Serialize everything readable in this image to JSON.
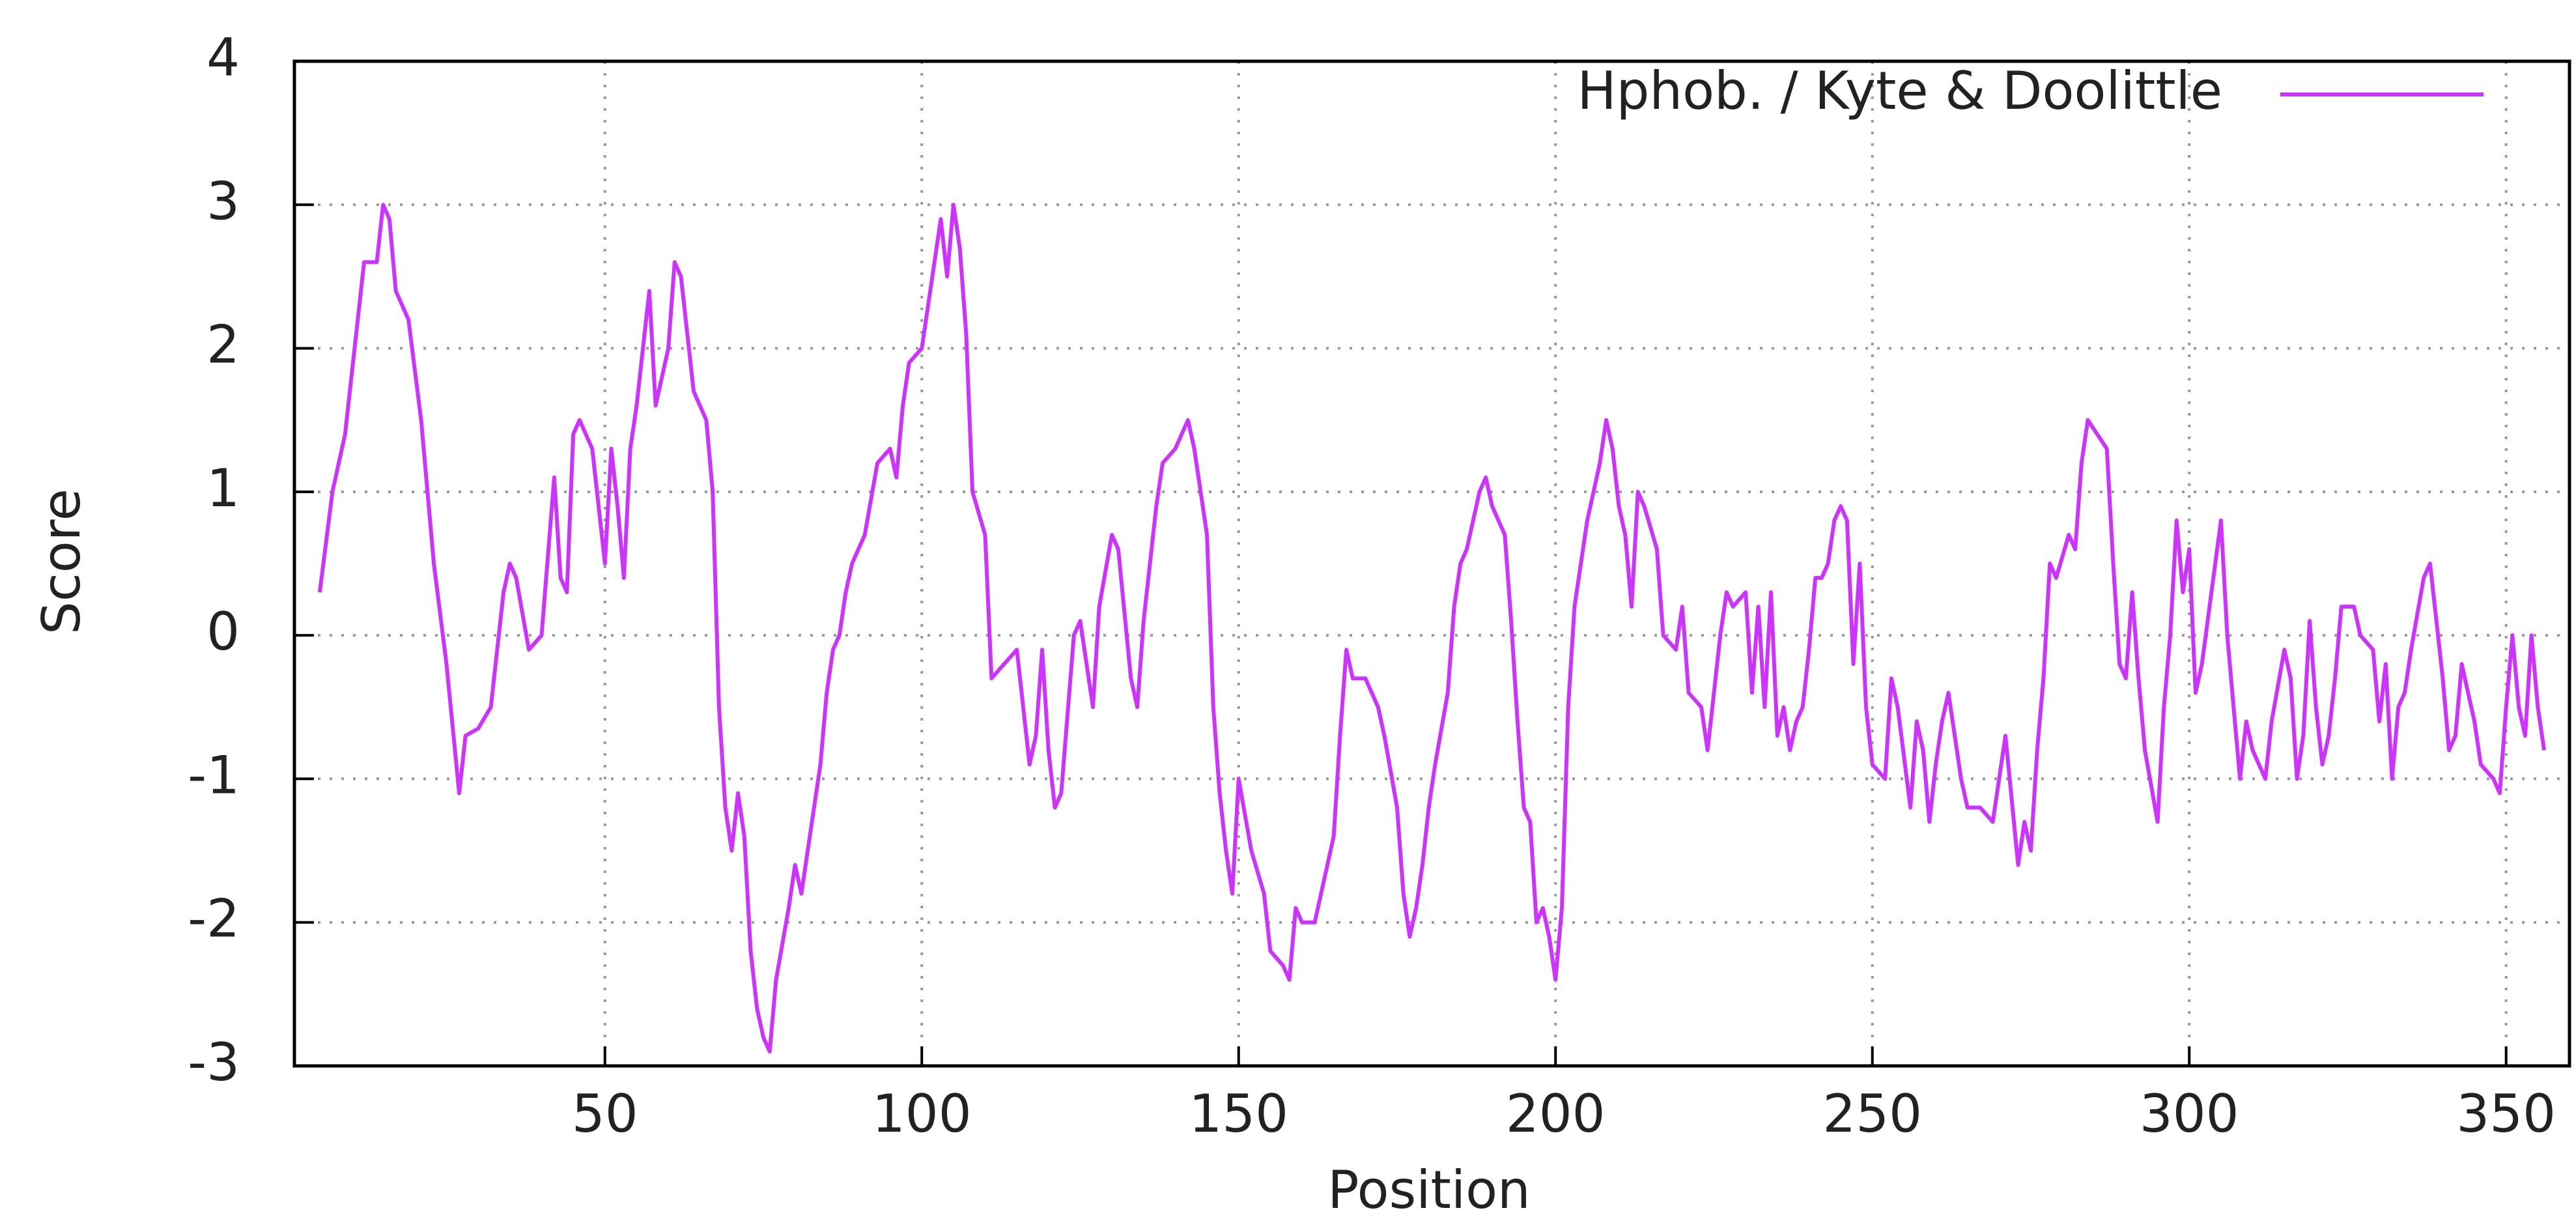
{
  "chart_data": {
    "type": "line",
    "xlabel": "Position",
    "ylabel": "Score",
    "x": [
      5,
      7,
      9,
      11,
      12,
      14,
      15,
      16,
      17,
      19,
      21,
      23,
      25,
      27,
      28,
      30,
      32,
      34,
      35,
      36,
      38,
      40,
      42,
      43,
      44,
      45,
      46,
      48,
      50,
      51,
      52,
      53,
      54,
      55,
      57,
      58,
      60,
      61,
      62,
      64,
      66,
      67,
      68,
      69,
      70,
      71,
      72,
      73,
      74,
      75,
      76,
      77,
      79,
      80,
      81,
      82,
      84,
      85,
      86,
      87,
      88,
      89,
      91,
      93,
      95,
      96,
      97,
      98,
      100,
      102,
      103,
      104,
      105,
      106,
      107,
      108,
      110,
      111,
      113,
      115,
      117,
      118,
      119,
      120,
      121,
      122,
      124,
      125,
      127,
      128,
      130,
      131,
      133,
      134,
      135,
      137,
      138,
      140,
      142,
      143,
      144,
      145,
      146,
      147,
      148,
      149,
      150,
      152,
      154,
      155,
      157,
      158,
      159,
      160,
      162,
      163,
      164,
      165,
      166,
      167,
      168,
      170,
      171,
      172,
      173,
      175,
      176,
      177,
      178,
      179,
      180,
      181,
      183,
      184,
      185,
      186,
      188,
      189,
      190,
      192,
      193,
      194,
      195,
      196,
      197,
      198,
      199,
      200,
      201,
      202,
      203,
      205,
      206,
      207,
      208,
      209,
      210,
      211,
      212,
      213,
      214,
      216,
      217,
      219,
      220,
      221,
      223,
      224,
      225,
      226,
      227,
      228,
      230,
      231,
      232,
      233,
      234,
      235,
      236,
      237,
      238,
      239,
      240,
      241,
      242,
      243,
      244,
      245,
      246,
      247,
      248,
      249,
      250,
      252,
      253,
      254,
      256,
      257,
      258,
      259,
      260,
      261,
      262,
      264,
      265,
      267,
      269,
      270,
      271,
      273,
      274,
      275,
      276,
      277,
      278,
      279,
      281,
      282,
      283,
      284,
      287,
      288,
      289,
      290,
      291,
      292,
      293,
      295,
      296,
      297,
      298,
      299,
      300,
      301,
      302,
      305,
      306,
      307,
      308,
      309,
      310,
      312,
      313,
      315,
      316,
      317,
      318,
      319,
      320,
      321,
      322,
      323,
      324,
      326,
      327,
      329,
      330,
      331,
      332,
      333,
      334,
      335,
      337,
      338,
      339,
      340,
      341,
      342,
      343,
      344,
      345,
      346,
      348,
      349,
      350,
      351,
      352,
      353,
      354,
      355,
      356
    ],
    "series": [
      {
        "name": "Hphob. / Kyte & Doolittle",
        "color": "#cc33ff",
        "values": [
          0.3,
          1.0,
          1.4,
          2.2,
          2.6,
          2.6,
          3.0,
          2.9,
          2.4,
          2.2,
          1.5,
          0.5,
          -0.2,
          -1.1,
          -0.7,
          -0.65,
          -0.5,
          0.3,
          0.5,
          0.4,
          -0.1,
          0.0,
          1.1,
          0.4,
          0.3,
          1.4,
          1.5,
          1.3,
          0.5,
          1.3,
          0.9,
          0.4,
          1.3,
          1.6,
          2.4,
          1.6,
          2.0,
          2.6,
          2.5,
          1.7,
          1.5,
          1.0,
          -0.5,
          -1.2,
          -1.5,
          -1.1,
          -1.4,
          -2.2,
          -2.6,
          -2.8,
          -2.9,
          -2.4,
          -1.9,
          -1.6,
          -1.8,
          -1.5,
          -0.9,
          -0.4,
          -0.1,
          0.0,
          0.3,
          0.5,
          0.7,
          1.2,
          1.3,
          1.1,
          1.6,
          1.9,
          2.0,
          2.6,
          2.9,
          2.5,
          3.0,
          2.7,
          2.1,
          1.0,
          0.7,
          -0.3,
          -0.2,
          -0.1,
          -0.9,
          -0.7,
          -0.1,
          -0.8,
          -1.2,
          -1.1,
          0.0,
          0.1,
          -0.5,
          0.2,
          0.7,
          0.6,
          -0.3,
          -0.5,
          0.1,
          0.9,
          1.2,
          1.3,
          1.5,
          1.3,
          1.0,
          0.7,
          -0.5,
          -1.1,
          -1.5,
          -1.8,
          -1.0,
          -1.5,
          -1.8,
          -2.2,
          -2.3,
          -2.4,
          -1.9,
          -2.0,
          -2.0,
          -1.8,
          -1.6,
          -1.4,
          -0.7,
          -0.1,
          -0.3,
          -0.3,
          -0.4,
          -0.5,
          -0.7,
          -1.2,
          -1.8,
          -2.1,
          -1.9,
          -1.6,
          -1.2,
          -0.9,
          -0.4,
          0.2,
          0.5,
          0.6,
          1.0,
          1.1,
          0.9,
          0.7,
          0.1,
          -0.6,
          -1.2,
          -1.3,
          -2.0,
          -1.9,
          -2.1,
          -2.4,
          -1.9,
          -0.5,
          0.2,
          0.8,
          1.0,
          1.2,
          1.5,
          1.3,
          0.9,
          0.7,
          0.2,
          1.0,
          0.9,
          0.6,
          0.0,
          -0.1,
          0.2,
          -0.4,
          -0.5,
          -0.8,
          -0.4,
          0.0,
          0.3,
          0.2,
          0.3,
          -0.4,
          0.2,
          -0.5,
          0.3,
          -0.7,
          -0.5,
          -0.8,
          -0.6,
          -0.5,
          -0.1,
          0.4,
          0.4,
          0.5,
          0.8,
          0.9,
          0.8,
          -0.2,
          0.5,
          -0.5,
          -0.9,
          -1.0,
          -0.3,
          -0.5,
          -1.2,
          -0.6,
          -0.8,
          -1.3,
          -0.9,
          -0.6,
          -0.4,
          -1.0,
          -1.2,
          -1.2,
          -1.3,
          -1.0,
          -0.7,
          -1.6,
          -1.3,
          -1.5,
          -0.8,
          -0.3,
          0.5,
          0.4,
          0.7,
          0.6,
          1.2,
          1.5,
          1.3,
          0.5,
          -0.2,
          -0.3,
          0.3,
          -0.3,
          -0.8,
          -1.3,
          -0.5,
          0.0,
          0.8,
          0.3,
          0.6,
          -0.4,
          -0.2,
          0.8,
          0.0,
          -0.5,
          -1.0,
          -0.6,
          -0.8,
          -1.0,
          -0.6,
          -0.1,
          -0.3,
          -1.0,
          -0.7,
          0.1,
          -0.5,
          -0.9,
          -0.7,
          -0.3,
          0.2,
          0.2,
          0.0,
          -0.1,
          -0.6,
          -0.2,
          -1.0,
          -0.5,
          -0.4,
          -0.1,
          0.4,
          0.5,
          0.1,
          -0.3,
          -0.8,
          -0.7,
          -0.2,
          -0.4,
          -0.6,
          -0.9,
          -1.0,
          -1.1,
          -0.5,
          0.0,
          -0.5,
          -0.7,
          0.0,
          -0.5,
          -0.8
        ]
      }
    ],
    "xlim": [
      1,
      360
    ],
    "xticks": [
      50,
      100,
      150,
      200,
      250,
      300,
      350
    ],
    "ylim": [
      -3,
      4
    ],
    "yticks": [
      -3,
      -2,
      -1,
      0,
      1,
      2,
      3,
      4
    ],
    "grid": true,
    "legend": "top-right"
  }
}
